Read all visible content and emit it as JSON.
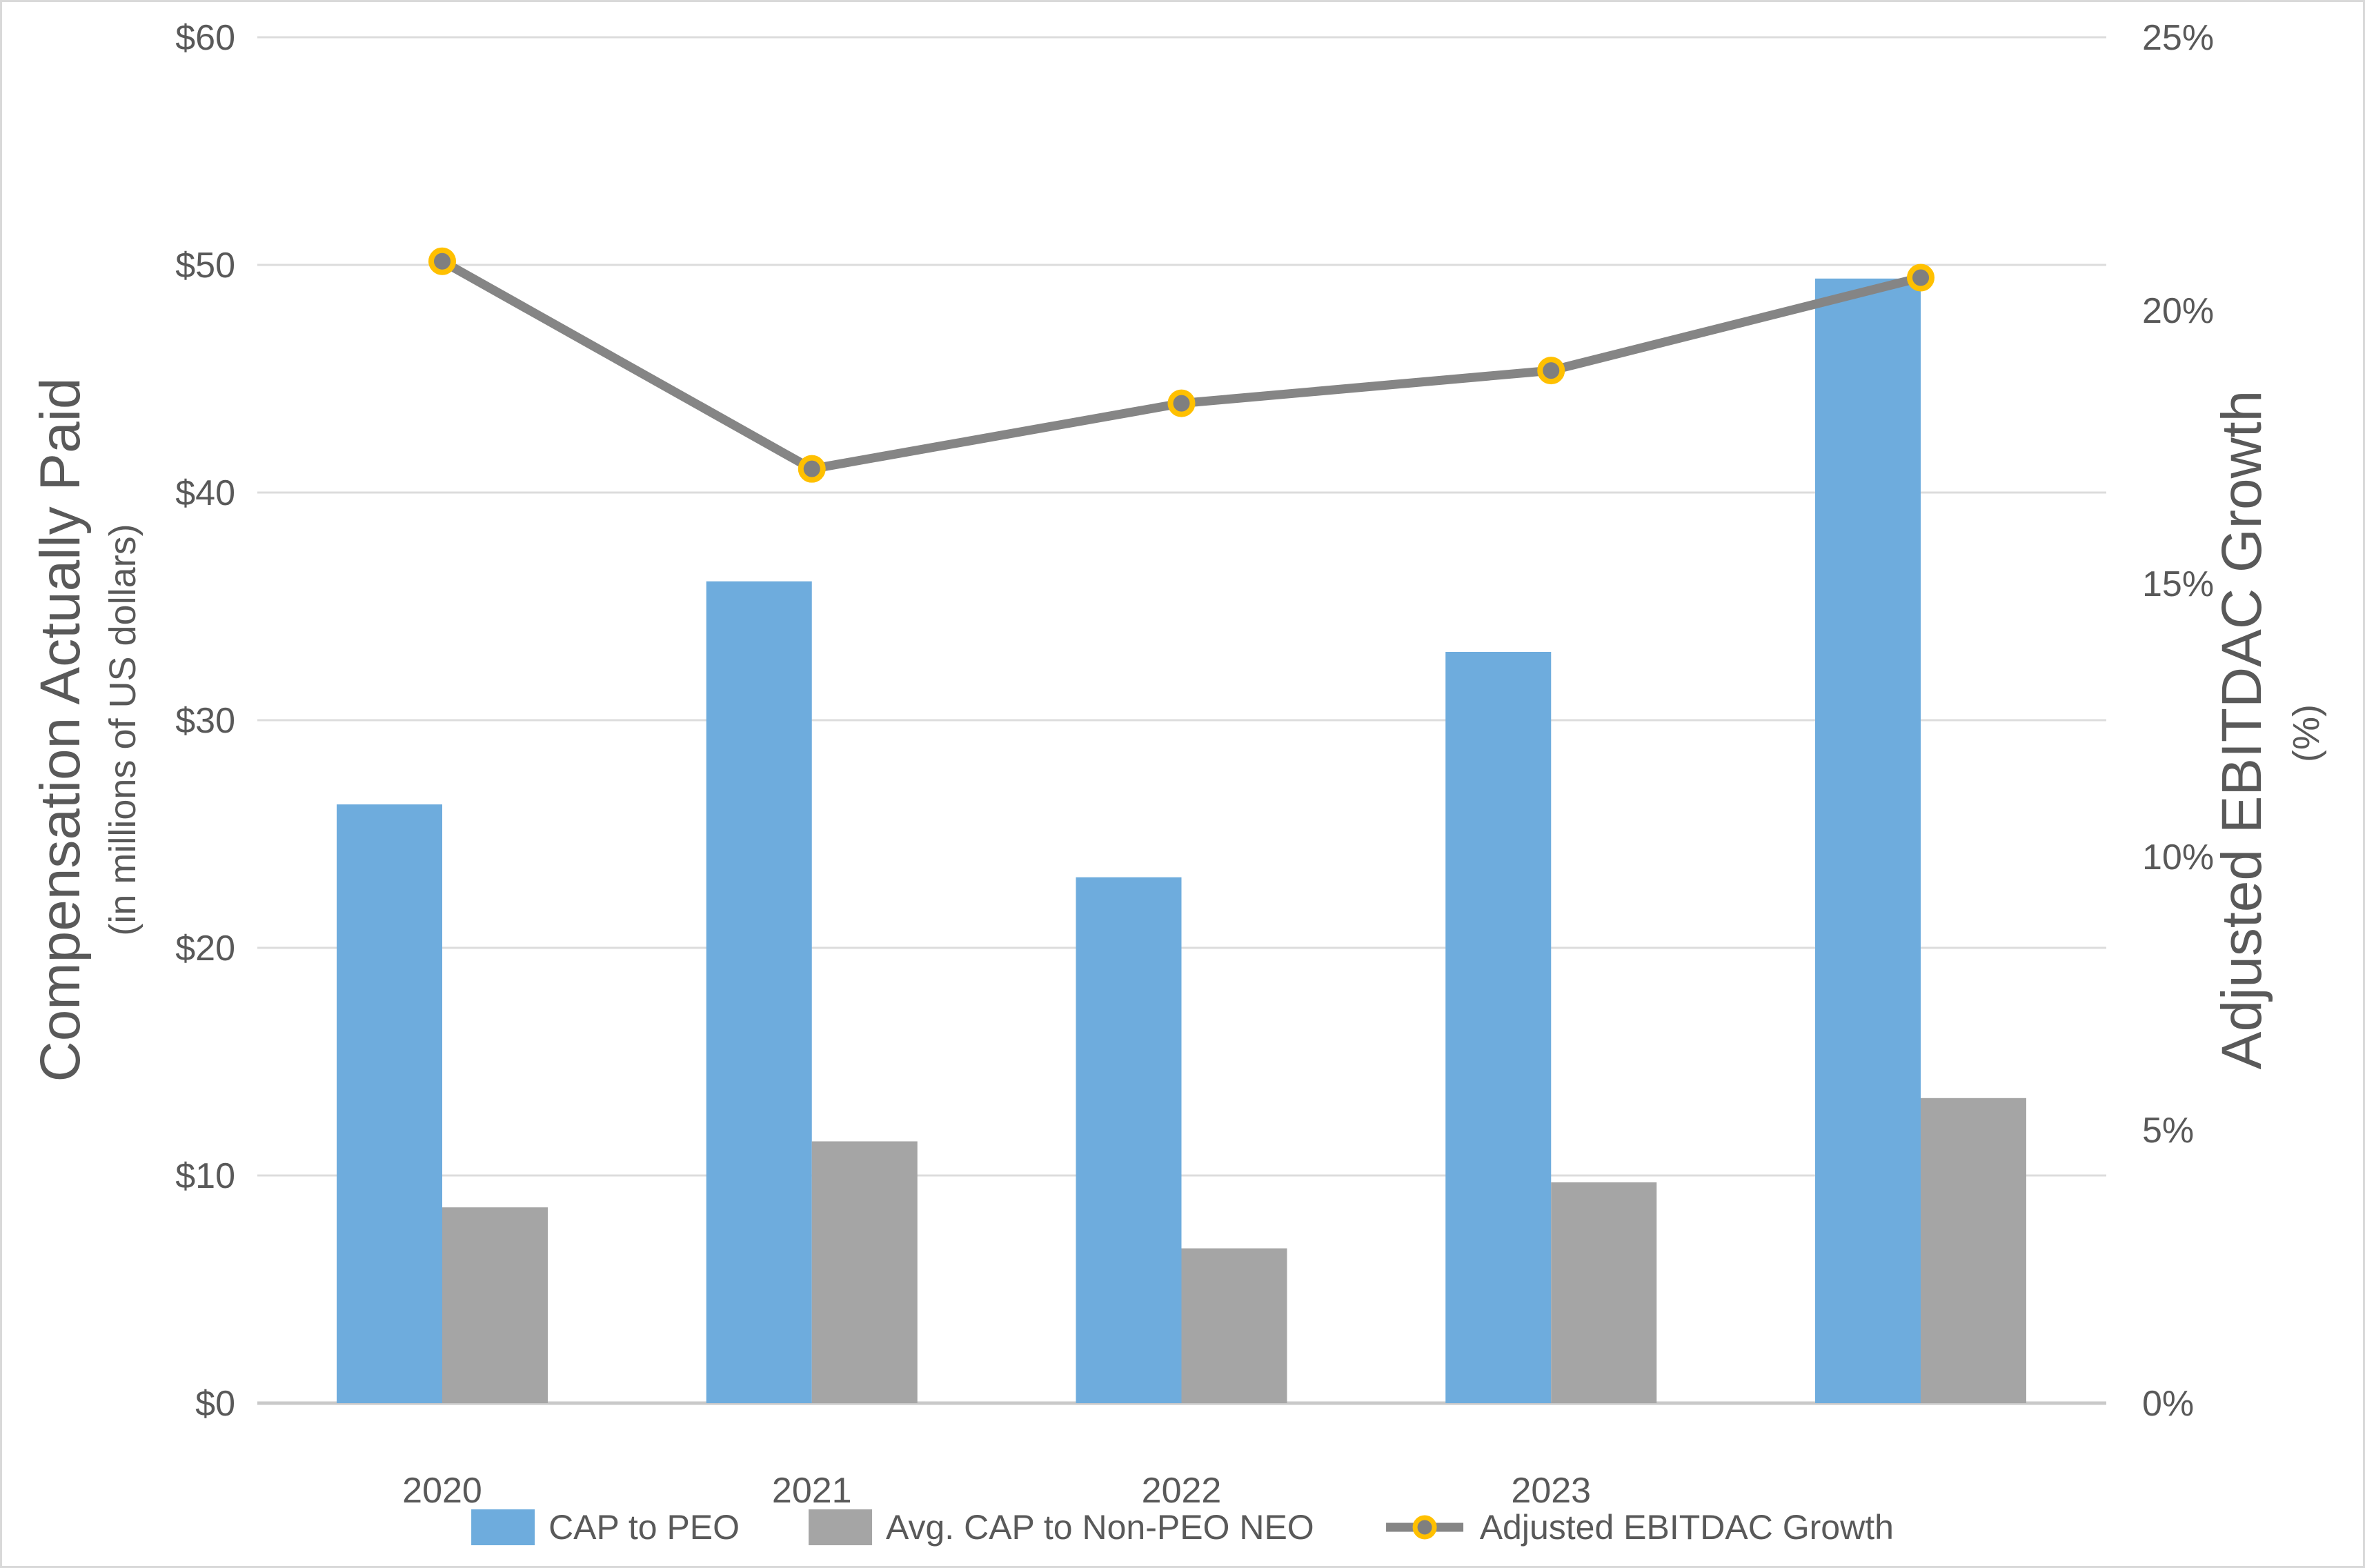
{
  "chart_data": {
    "type": "combo-bar-line",
    "title": "",
    "categories": [
      "2020",
      "2021",
      "2022",
      "2023",
      ""
    ],
    "series": [
      {
        "name": "CAP to PEO",
        "type": "bar",
        "axis": "left",
        "values": [
          26.3,
          36.1,
          23.1,
          33.0,
          49.4
        ]
      },
      {
        "name": "Avg. CAP to Non-PEO NEO",
        "type": "bar",
        "axis": "left",
        "values": [
          8.6,
          11.5,
          6.8,
          9.7,
          13.4
        ]
      },
      {
        "name": "Adjusted EBITDAC Growth",
        "type": "line",
        "axis": "right",
        "values": [
          20.9,
          17.1,
          18.3,
          18.9,
          20.6
        ]
      }
    ],
    "left_axis": {
      "title": "Compensation Actually Paid",
      "subtitle": "(in millions of US dollars)",
      "min": 0,
      "max": 60,
      "step": 10,
      "tick_labels": [
        "$0",
        "$10",
        "$20",
        "$30",
        "$40",
        "$50",
        "$60"
      ]
    },
    "right_axis": {
      "title": "Adjusted EBITDAC Growth",
      "subtitle": "(%)",
      "min": 0,
      "max": 25,
      "step": 5,
      "tick_labels": [
        "0%",
        "5%",
        "10%",
        "15%",
        "20%",
        "25%"
      ]
    },
    "legend": {
      "position": "bottom",
      "entries": [
        "CAP to PEO",
        "Avg. CAP to Non-PEO NEO",
        "Adjusted EBITDAC Growth"
      ]
    },
    "grid": true,
    "colors": {
      "bar_blue": "#6EACDD",
      "bar_gray": "#A5A5A5",
      "line_gray": "#858585",
      "marker_fill": "#7F7F7F",
      "marker_ring": "#FFC000",
      "gridline": "#DCDCDC",
      "axis_line": "#C9C9C9",
      "text": "#595959"
    }
  }
}
